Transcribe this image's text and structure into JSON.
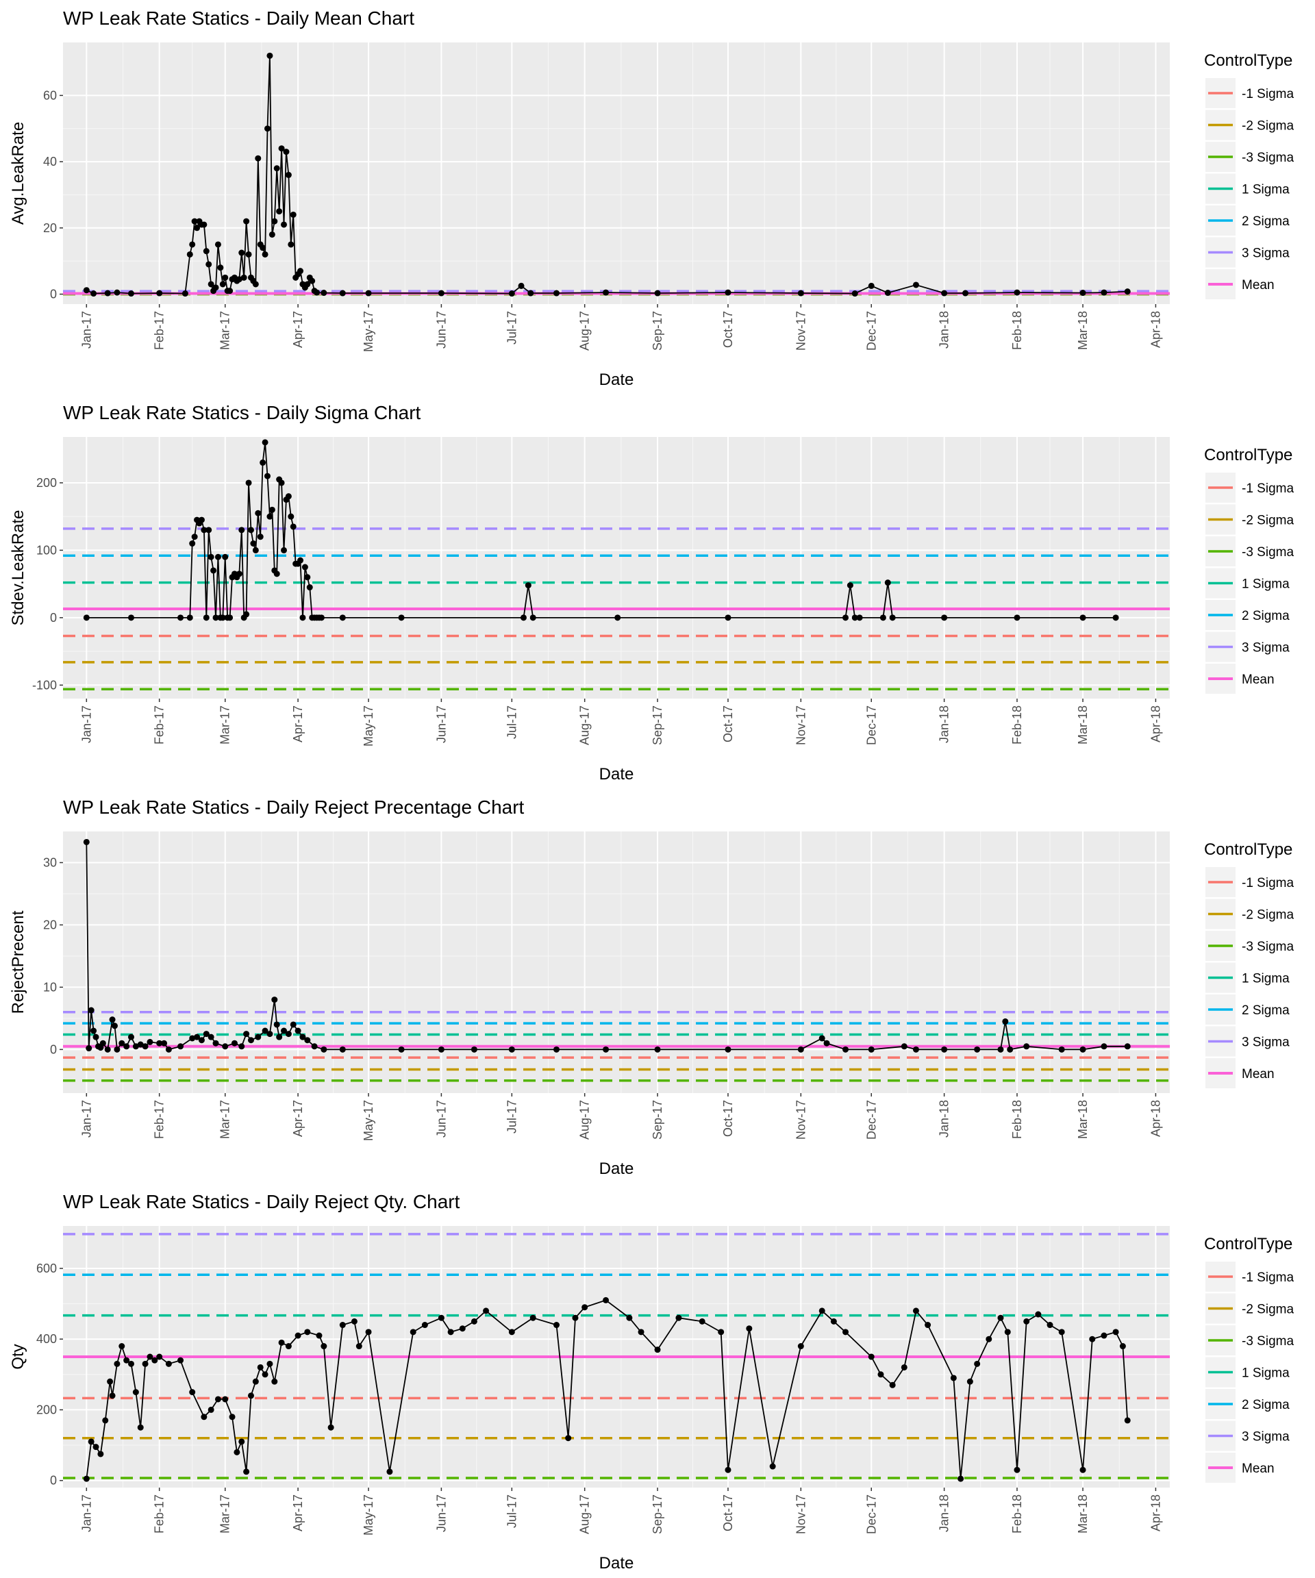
{
  "chart_data": [
    {
      "type": "line",
      "title": "WP Leak Rate Statics - Daily Mean Chart",
      "xlabel": "Date",
      "ylabel": "Avg.LeakRate",
      "xlim": [
        "2016-12-22",
        "2018-04-07"
      ],
      "ylim": [
        -3,
        76
      ],
      "yticks": [
        0,
        20,
        40,
        60
      ],
      "xticks": [
        "Jan-17",
        "Feb-17",
        "Mar-17",
        "Apr-17",
        "May-17",
        "Jun-17",
        "Jul-17",
        "Aug-17",
        "Sep-17",
        "Oct-17",
        "Nov-17",
        "Dec-17",
        "Jan-18",
        "Feb-18",
        "Mar-18",
        "Apr-18"
      ],
      "control_lines": {
        "-1 Sigma": 0,
        "-2 Sigma": 0,
        "-3 Sigma": 0,
        "1 Sigma": 0.3,
        "2 Sigma": 0.6,
        "3 Sigma": 0.9,
        "Mean": 0.2
      },
      "series": [
        {
          "x": [
            "2017-01-01",
            "2017-01-04",
            "2017-01-10",
            "2017-01-14",
            "2017-01-20",
            "2017-02-01",
            "2017-02-12",
            "2017-02-14",
            "2017-02-15",
            "2017-02-16",
            "2017-02-17",
            "2017-02-18",
            "2017-02-19",
            "2017-02-20",
            "2017-02-21",
            "2017-02-22",
            "2017-02-23",
            "2017-02-24",
            "2017-02-25",
            "2017-02-26",
            "2017-02-27",
            "2017-02-28",
            "2017-03-01",
            "2017-03-02",
            "2017-03-03",
            "2017-03-04",
            "2017-03-05",
            "2017-03-06",
            "2017-03-07",
            "2017-03-08",
            "2017-03-09",
            "2017-03-10",
            "2017-03-11",
            "2017-03-12",
            "2017-03-13",
            "2017-03-14",
            "2017-03-15",
            "2017-03-16",
            "2017-03-17",
            "2017-03-18",
            "2017-03-19",
            "2017-03-20",
            "2017-03-21",
            "2017-03-22",
            "2017-03-23",
            "2017-03-24",
            "2017-03-25",
            "2017-03-26",
            "2017-03-27",
            "2017-03-28",
            "2017-03-29",
            "2017-03-30",
            "2017-03-31",
            "2017-04-01",
            "2017-04-02",
            "2017-04-03",
            "2017-04-04",
            "2017-04-05",
            "2017-04-06",
            "2017-04-07",
            "2017-04-08",
            "2017-04-09",
            "2017-04-12",
            "2017-04-20",
            "2017-05-01",
            "2017-06-01",
            "2017-07-01",
            "2017-07-05",
            "2017-07-09",
            "2017-07-20",
            "2017-08-10",
            "2017-09-01",
            "2017-10-01",
            "2017-11-01",
            "2017-11-24",
            "2017-12-01",
            "2017-12-08",
            "2017-12-20",
            "2018-01-01",
            "2018-01-10",
            "2018-02-01",
            "2018-03-01",
            "2018-03-10",
            "2018-03-20"
          ],
          "y": [
            1.2,
            0.2,
            0.3,
            0.5,
            0.2,
            0.3,
            0.2,
            12,
            15,
            22,
            20,
            22,
            21,
            21,
            13,
            9,
            3,
            1,
            2,
            15,
            8,
            3,
            5,
            1,
            1,
            4.5,
            5,
            4,
            4.5,
            12.5,
            5,
            22,
            12,
            5,
            4,
            3,
            41,
            15,
            14,
            12,
            50,
            72,
            18,
            22,
            38,
            25,
            44,
            21,
            43,
            36,
            15,
            24,
            5,
            6,
            7,
            3,
            2,
            3,
            5,
            4,
            1,
            0.5,
            0.4,
            0.3,
            0.3,
            0.3,
            0.2,
            2.5,
            0.3,
            0.3,
            0.5,
            0.3,
            0.5,
            0.3,
            0.2,
            2.5,
            0.4,
            2.8,
            0.3,
            0.3,
            0.5,
            0.4,
            0.5,
            0.8
          ]
        }
      ]
    },
    {
      "type": "line",
      "title": "WP Leak Rate Statics - Daily Sigma Chart",
      "xlabel": "Date",
      "ylabel": "Stdev.LeakRate",
      "xlim": [
        "2016-12-22",
        "2018-04-07"
      ],
      "ylim": [
        -120,
        268
      ],
      "yticks": [
        -100,
        0,
        100,
        200
      ],
      "xticks": [
        "Jan-17",
        "Feb-17",
        "Mar-17",
        "Apr-17",
        "May-17",
        "Jun-17",
        "Jul-17",
        "Aug-17",
        "Sep-17",
        "Oct-17",
        "Nov-17",
        "Dec-17",
        "Jan-18",
        "Feb-18",
        "Mar-18",
        "Apr-18"
      ],
      "control_lines": {
        "-1 Sigma": -27,
        "-2 Sigma": -66,
        "-3 Sigma": -106,
        "1 Sigma": 52,
        "2 Sigma": 92,
        "3 Sigma": 132,
        "Mean": 13
      },
      "series": [
        {
          "x": [
            "2017-01-01",
            "2017-01-20",
            "2017-02-10",
            "2017-02-14",
            "2017-02-15",
            "2017-02-16",
            "2017-02-17",
            "2017-02-18",
            "2017-02-19",
            "2017-02-20",
            "2017-02-21",
            "2017-02-22",
            "2017-02-23",
            "2017-02-24",
            "2017-02-25",
            "2017-02-26",
            "2017-02-27",
            "2017-02-28",
            "2017-03-01",
            "2017-03-02",
            "2017-03-03",
            "2017-03-04",
            "2017-03-05",
            "2017-03-06",
            "2017-03-07",
            "2017-03-08",
            "2017-03-09",
            "2017-03-10",
            "2017-03-11",
            "2017-03-12",
            "2017-03-13",
            "2017-03-14",
            "2017-03-15",
            "2017-03-16",
            "2017-03-17",
            "2017-03-18",
            "2017-03-19",
            "2017-03-20",
            "2017-03-21",
            "2017-03-22",
            "2017-03-23",
            "2017-03-24",
            "2017-03-25",
            "2017-03-26",
            "2017-03-27",
            "2017-03-28",
            "2017-03-29",
            "2017-03-30",
            "2017-03-31",
            "2017-04-01",
            "2017-04-02",
            "2017-04-03",
            "2017-04-04",
            "2017-04-05",
            "2017-04-06",
            "2017-04-07",
            "2017-04-08",
            "2017-04-09",
            "2017-04-10",
            "2017-04-11",
            "2017-04-20",
            "2017-05-15",
            "2017-07-06",
            "2017-07-08",
            "2017-07-10",
            "2017-08-15",
            "2017-10-01",
            "2017-11-20",
            "2017-11-22",
            "2017-11-24",
            "2017-11-26",
            "2017-12-06",
            "2017-12-08",
            "2017-12-10",
            "2018-01-01",
            "2018-02-01",
            "2018-03-01",
            "2018-03-15"
          ],
          "y": [
            0,
            0,
            0,
            0,
            110,
            120,
            145,
            140,
            145,
            130,
            0,
            130,
            90,
            70,
            0,
            90,
            0,
            0,
            90,
            0,
            0,
            60,
            65,
            60,
            65,
            130,
            0,
            5,
            200,
            130,
            110,
            100,
            155,
            120,
            230,
            260,
            210,
            150,
            160,
            70,
            65,
            205,
            200,
            100,
            175,
            180,
            150,
            135,
            80,
            80,
            85,
            0,
            75,
            60,
            45,
            0,
            0,
            0,
            0,
            0,
            0,
            0,
            0,
            48,
            0,
            0,
            0,
            0,
            48,
            0,
            0,
            0,
            52,
            0,
            0,
            0,
            0,
            0
          ]
        }
      ]
    },
    {
      "type": "line",
      "title": "WP Leak Rate Statics - Daily Reject Precentage Chart",
      "xlabel": "Date",
      "ylabel": "RejectPrecent",
      "xlim": [
        "2016-12-22",
        "2018-04-07"
      ],
      "ylim": [
        -7,
        35
      ],
      "yticks": [
        0,
        10,
        20,
        30
      ],
      "xticks": [
        "Jan-17",
        "Feb-17",
        "Mar-17",
        "Apr-17",
        "May-17",
        "Jun-17",
        "Jul-17",
        "Aug-17",
        "Sep-17",
        "Oct-17",
        "Nov-17",
        "Dec-17",
        "Jan-18",
        "Feb-18",
        "Mar-18",
        "Apr-18"
      ],
      "control_lines": {
        "-1 Sigma": -1.3,
        "-2 Sigma": -3.2,
        "-3 Sigma": -5.0,
        "1 Sigma": 2.4,
        "2 Sigma": 4.2,
        "3 Sigma": 6.0,
        "Mean": 0.5
      },
      "series": [
        {
          "x": [
            "2017-01-01",
            "2017-01-02",
            "2017-01-03",
            "2017-01-04",
            "2017-01-05",
            "2017-01-06",
            "2017-01-07",
            "2017-01-08",
            "2017-01-10",
            "2017-01-12",
            "2017-01-13",
            "2017-01-14",
            "2017-01-16",
            "2017-01-18",
            "2017-01-20",
            "2017-01-22",
            "2017-01-24",
            "2017-01-26",
            "2017-01-28",
            "2017-02-01",
            "2017-02-03",
            "2017-02-05",
            "2017-02-10",
            "2017-02-15",
            "2017-02-17",
            "2017-02-19",
            "2017-02-21",
            "2017-02-23",
            "2017-02-25",
            "2017-03-01",
            "2017-03-05",
            "2017-03-08",
            "2017-03-10",
            "2017-03-12",
            "2017-03-15",
            "2017-03-18",
            "2017-03-20",
            "2017-03-22",
            "2017-03-23",
            "2017-03-24",
            "2017-03-26",
            "2017-03-28",
            "2017-03-30",
            "2017-04-01",
            "2017-04-03",
            "2017-04-05",
            "2017-04-08",
            "2017-04-12",
            "2017-04-20",
            "2017-05-15",
            "2017-06-01",
            "2017-06-15",
            "2017-07-01",
            "2017-07-20",
            "2017-08-10",
            "2017-09-01",
            "2017-10-01",
            "2017-11-01",
            "2017-11-10",
            "2017-11-12",
            "2017-11-20",
            "2017-12-01",
            "2017-12-15",
            "2017-12-20",
            "2018-01-01",
            "2018-01-15",
            "2018-01-25",
            "2018-01-27",
            "2018-01-29",
            "2018-02-05",
            "2018-02-20",
            "2018-03-01",
            "2018-03-10",
            "2018-03-20"
          ],
          "y": [
            33.3,
            0.2,
            6.3,
            3,
            2,
            0.5,
            0.3,
            1,
            0,
            4.8,
            3.8,
            0,
            1,
            0.5,
            2,
            0.5,
            0.8,
            0.5,
            1.2,
            1,
            1,
            0,
            0.5,
            1.8,
            2,
            1.5,
            2.5,
            2,
            1,
            0.5,
            1,
            0.5,
            2.5,
            1.5,
            2,
            3,
            2.5,
            8,
            4,
            2,
            3,
            2.5,
            4,
            3,
            2,
            1.5,
            0.5,
            0,
            0,
            0,
            0,
            0,
            0,
            0,
            0,
            0,
            0,
            0,
            1.8,
            1,
            0,
            0,
            0.5,
            0,
            0,
            0,
            0,
            4.5,
            0,
            0.5,
            0,
            0,
            0.5,
            0.5
          ]
        }
      ]
    },
    {
      "type": "line",
      "title": "WP Leak Rate Statics - Daily Reject Qty. Chart",
      "xlabel": "Date",
      "ylabel": "Qty",
      "xlim": [
        "2016-12-22",
        "2018-04-07"
      ],
      "ylim": [
        -20,
        720
      ],
      "yticks": [
        0,
        200,
        400,
        600
      ],
      "xticks": [
        "Jan-17",
        "Feb-17",
        "Mar-17",
        "Apr-17",
        "May-17",
        "Jun-17",
        "Jul-17",
        "Aug-17",
        "Sep-17",
        "Oct-17",
        "Nov-17",
        "Dec-17",
        "Jan-18",
        "Feb-18",
        "Mar-18",
        "Apr-18"
      ],
      "control_lines": {
        "-1 Sigma": 233,
        "-2 Sigma": 120,
        "-3 Sigma": 7,
        "1 Sigma": 467,
        "2 Sigma": 582,
        "3 Sigma": 697,
        "Mean": 350
      },
      "series": [
        {
          "x": [
            "2017-01-01",
            "2017-01-03",
            "2017-01-05",
            "2017-01-07",
            "2017-01-09",
            "2017-01-11",
            "2017-01-12",
            "2017-01-14",
            "2017-01-16",
            "2017-01-18",
            "2017-01-20",
            "2017-01-22",
            "2017-01-24",
            "2017-01-26",
            "2017-01-28",
            "2017-01-30",
            "2017-02-01",
            "2017-02-05",
            "2017-02-10",
            "2017-02-15",
            "2017-02-20",
            "2017-02-23",
            "2017-02-26",
            "2017-03-01",
            "2017-03-04",
            "2017-03-06",
            "2017-03-08",
            "2017-03-10",
            "2017-03-12",
            "2017-03-14",
            "2017-03-16",
            "2017-03-18",
            "2017-03-20",
            "2017-03-22",
            "2017-03-25",
            "2017-03-28",
            "2017-04-01",
            "2017-04-05",
            "2017-04-10",
            "2017-04-12",
            "2017-04-15",
            "2017-04-20",
            "2017-04-25",
            "2017-04-27",
            "2017-05-01",
            "2017-05-10",
            "2017-05-20",
            "2017-05-25",
            "2017-06-01",
            "2017-06-05",
            "2017-06-10",
            "2017-06-15",
            "2017-06-20",
            "2017-07-01",
            "2017-07-10",
            "2017-07-20",
            "2017-07-25",
            "2017-07-28",
            "2017-08-01",
            "2017-08-10",
            "2017-08-20",
            "2017-08-25",
            "2017-09-01",
            "2017-09-10",
            "2017-09-20",
            "2017-09-28",
            "2017-10-01",
            "2017-10-10",
            "2017-10-20",
            "2017-11-01",
            "2017-11-10",
            "2017-11-15",
            "2017-11-20",
            "2017-12-01",
            "2017-12-05",
            "2017-12-10",
            "2017-12-15",
            "2017-12-20",
            "2017-12-25",
            "2018-01-05",
            "2018-01-08",
            "2018-01-12",
            "2018-01-15",
            "2018-01-20",
            "2018-01-25",
            "2018-01-28",
            "2018-02-01",
            "2018-02-05",
            "2018-02-10",
            "2018-02-15",
            "2018-02-20",
            "2018-03-01",
            "2018-03-05",
            "2018-03-10",
            "2018-03-15",
            "2018-03-18",
            "2018-03-20"
          ],
          "y": [
            5,
            110,
            95,
            75,
            170,
            280,
            240,
            330,
            380,
            340,
            330,
            250,
            150,
            330,
            350,
            340,
            350,
            330,
            340,
            250,
            180,
            200,
            230,
            230,
            180,
            80,
            110,
            25,
            240,
            280,
            320,
            300,
            330,
            280,
            390,
            380,
            410,
            420,
            410,
            380,
            150,
            440,
            450,
            380,
            420,
            25,
            420,
            440,
            460,
            420,
            430,
            450,
            480,
            420,
            460,
            440,
            120,
            460,
            490,
            510,
            460,
            420,
            370,
            460,
            450,
            420,
            30,
            430,
            40,
            380,
            480,
            450,
            420,
            350,
            300,
            270,
            320,
            480,
            440,
            290,
            5,
            280,
            330,
            400,
            460,
            420,
            30,
            450,
            470,
            440,
            420,
            30,
            400,
            410,
            420,
            380,
            170
          ]
        }
      ]
    }
  ],
  "legend": {
    "title": "ControlType",
    "items": [
      {
        "label": "-1 Sigma",
        "color": "#F8766D"
      },
      {
        "label": "-2 Sigma",
        "color": "#C49A00"
      },
      {
        "label": "-3 Sigma",
        "color": "#53B400"
      },
      {
        "label": "1 Sigma",
        "color": "#00C094"
      },
      {
        "label": "2 Sigma",
        "color": "#00B6EB"
      },
      {
        "label": "3 Sigma",
        "color": "#A58AFF"
      },
      {
        "label": "Mean",
        "color": "#FB61D7"
      }
    ]
  }
}
